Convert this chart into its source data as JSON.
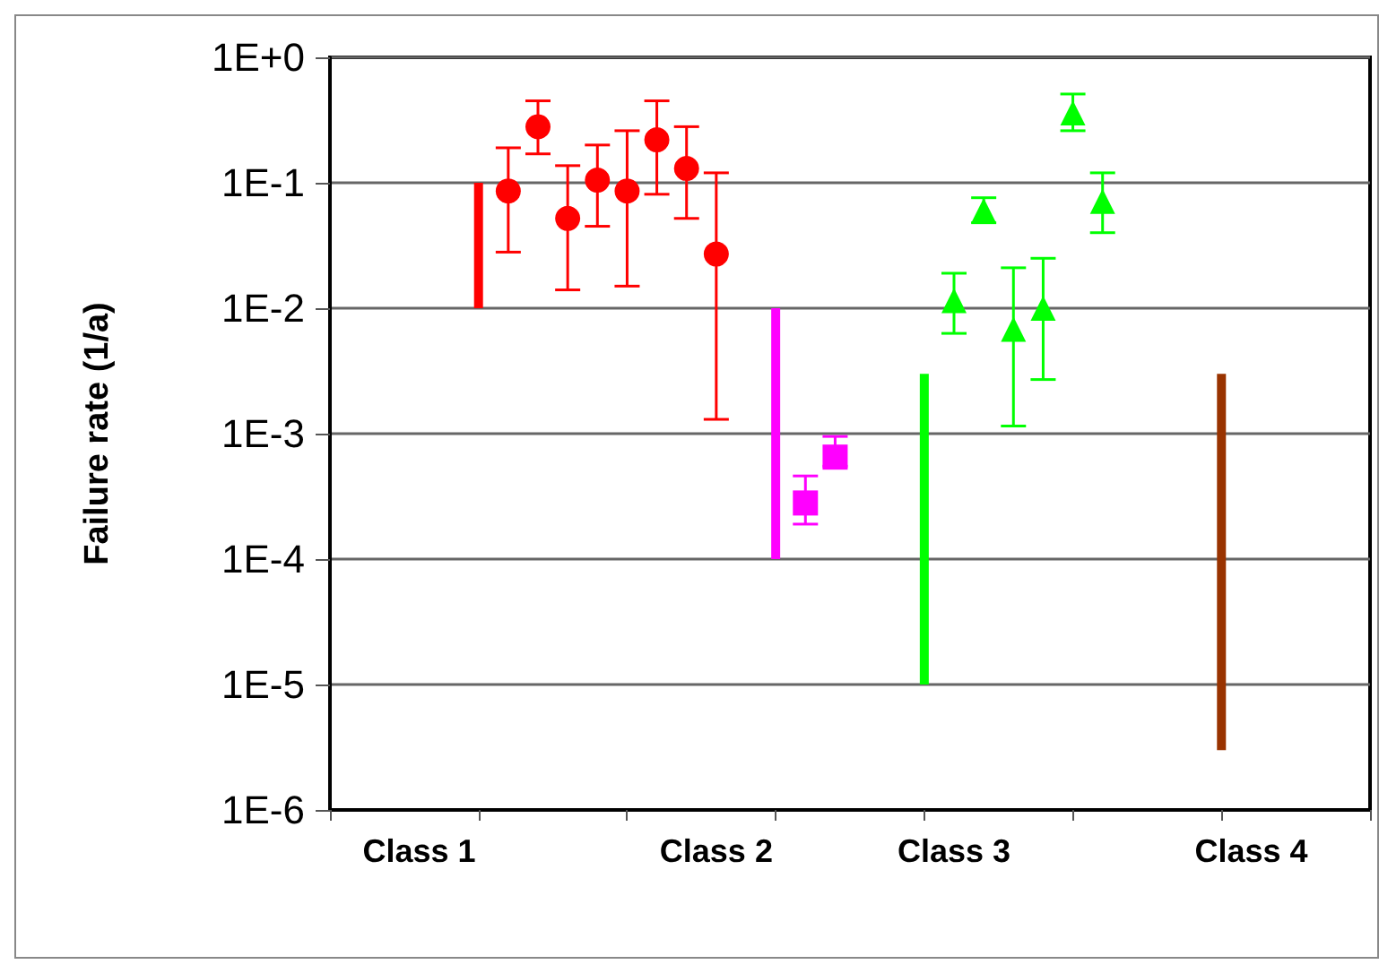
{
  "chart_data": {
    "type": "scatter",
    "ylabel": "Failure rate (1/a)",
    "log": "y",
    "grid": "y",
    "categories": [
      null,
      null,
      null,
      "Class 1",
      null,
      null,
      null,
      null,
      null,
      null,
      null,
      null,
      null,
      "Class 2",
      null,
      null,
      null,
      null,
      null,
      null,
      null,
      "Class 3",
      null,
      null,
      null,
      null,
      null,
      null,
      null,
      null,
      null,
      "Class 4",
      null,
      null,
      null,
      null
    ],
    "ylim": [
      1e-06,
      1
    ],
    "yticks": [
      {
        "value": 1,
        "label": "1E+0"
      },
      {
        "value": 0.1,
        "label": "1E-1"
      },
      {
        "value": 0.01,
        "label": "1E-2"
      },
      {
        "value": 0.001,
        "label": "1E-3"
      },
      {
        "value": 0.0001,
        "label": "1E-4"
      },
      {
        "value": 1e-05,
        "label": "1E-5"
      },
      {
        "value": 1e-06,
        "label": "1E-6"
      }
    ],
    "series": [
      {
        "type": "bar",
        "color": "#ff0000",
        "base": [
          null,
          null,
          null,
          null,
          null,
          0.01,
          null,
          null,
          null,
          null,
          null,
          null,
          null,
          null,
          null,
          null,
          null,
          null,
          null,
          null,
          null,
          null,
          null,
          null,
          null,
          null,
          null,
          null,
          null,
          null,
          null,
          null,
          null,
          null,
          null,
          null
        ],
        "values": [
          null,
          null,
          null,
          null,
          null,
          0.09,
          null,
          null,
          null,
          null,
          null,
          null,
          null,
          null,
          null,
          null,
          null,
          null,
          null,
          null,
          null,
          null,
          null,
          null,
          null,
          null,
          null,
          null,
          null,
          null,
          null,
          null,
          null,
          null,
          null,
          null
        ]
      },
      {
        "marker": "circle",
        "color": "#ff0000",
        "values": [
          null,
          null,
          null,
          null,
          null,
          null,
          0.086,
          0.28,
          0.052,
          0.105,
          0.086,
          0.22,
          0.13,
          0.027,
          null,
          null,
          null,
          null,
          null,
          null,
          null,
          null,
          null,
          null,
          null,
          null,
          null,
          null,
          null,
          null,
          null,
          null,
          null,
          null,
          null,
          null
        ],
        "errors": [
          null,
          null,
          null,
          null,
          null,
          null,
          [
            0.028,
            0.19
          ],
          [
            0.17,
            0.45
          ],
          [
            0.014,
            0.137
          ],
          [
            0.045,
            0.2
          ],
          [
            0.015,
            0.26
          ],
          [
            0.081,
            0.45
          ],
          [
            0.052,
            0.28
          ],
          [
            0.0013,
            0.12
          ],
          null,
          null,
          null,
          null,
          null,
          null,
          null,
          null,
          null,
          null,
          null,
          null,
          null,
          null,
          null,
          null,
          null,
          null,
          null,
          null,
          null,
          null
        ]
      },
      {
        "type": "bar",
        "color": "#ff00ff",
        "base": [
          null,
          null,
          null,
          null,
          null,
          null,
          null,
          null,
          null,
          null,
          null,
          null,
          null,
          null,
          null,
          0.0001,
          null,
          null,
          null,
          null,
          null,
          null,
          null,
          null,
          null,
          null,
          null,
          null,
          null,
          null,
          null,
          null,
          null,
          null,
          null,
          null
        ],
        "values": [
          null,
          null,
          null,
          null,
          null,
          null,
          null,
          null,
          null,
          null,
          null,
          null,
          null,
          null,
          null,
          0.0099,
          null,
          null,
          null,
          null,
          null,
          null,
          null,
          null,
          null,
          null,
          null,
          null,
          null,
          null,
          null,
          null,
          null,
          null,
          null,
          null
        ]
      },
      {
        "marker": "square",
        "color": "#ff00ff",
        "values": [
          null,
          null,
          null,
          null,
          null,
          null,
          null,
          null,
          null,
          null,
          null,
          null,
          null,
          null,
          null,
          null,
          0.00028,
          0.00065,
          null,
          null,
          null,
          null,
          null,
          null,
          null,
          null,
          null,
          null,
          null,
          null,
          null,
          null,
          null,
          null,
          null,
          null
        ],
        "errors": [
          null,
          null,
          null,
          null,
          null,
          null,
          null,
          null,
          null,
          null,
          null,
          null,
          null,
          null,
          null,
          null,
          [
            0.00019,
            0.00046
          ],
          [
            0.00055,
            0.00095
          ],
          null,
          null,
          null,
          null,
          null,
          null,
          null,
          null,
          null,
          null,
          null,
          null,
          null,
          null,
          null,
          null,
          null,
          null
        ]
      },
      {
        "type": "bar",
        "color": "#00ff00",
        "base": [
          null,
          null,
          null,
          null,
          null,
          null,
          null,
          null,
          null,
          null,
          null,
          null,
          null,
          null,
          null,
          null,
          null,
          null,
          null,
          null,
          1e-05,
          null,
          null,
          null,
          null,
          null,
          null,
          null,
          null,
          null,
          null,
          null,
          null,
          null,
          null,
          null
        ],
        "values": [
          null,
          null,
          null,
          null,
          null,
          null,
          null,
          null,
          null,
          null,
          null,
          null,
          null,
          null,
          null,
          null,
          null,
          null,
          null,
          null,
          0.00299,
          null,
          null,
          null,
          null,
          null,
          null,
          null,
          null,
          null,
          null,
          null,
          null,
          null,
          null,
          null
        ]
      },
      {
        "marker": "triangle",
        "color": "#00ff00",
        "values": [
          null,
          null,
          null,
          null,
          null,
          null,
          null,
          null,
          null,
          null,
          null,
          null,
          null,
          null,
          null,
          null,
          null,
          null,
          null,
          null,
          null,
          0.0115,
          0.06,
          0.0068,
          0.01,
          0.36,
          0.071,
          null,
          null,
          null,
          null,
          null,
          null,
          null,
          null,
          null
        ],
        "errors": [
          null,
          null,
          null,
          null,
          null,
          null,
          null,
          null,
          null,
          null,
          null,
          null,
          null,
          null,
          null,
          null,
          null,
          null,
          null,
          null,
          null,
          [
            0.0063,
            0.019
          ],
          [
            0.048,
            0.076
          ],
          [
            0.00115,
            0.021
          ],
          [
            0.0027,
            0.025
          ],
          [
            0.26,
            0.51
          ],
          [
            0.04,
            0.12
          ],
          null,
          null,
          null,
          null,
          null,
          null,
          null,
          null,
          null
        ]
      },
      {
        "type": "bar",
        "color": "#993300",
        "base": [
          null,
          null,
          null,
          null,
          null,
          null,
          null,
          null,
          null,
          null,
          null,
          null,
          null,
          null,
          null,
          null,
          null,
          null,
          null,
          null,
          null,
          null,
          null,
          null,
          null,
          null,
          null,
          null,
          null,
          null,
          3e-06,
          null,
          null,
          null,
          null,
          null
        ],
        "values": [
          null,
          null,
          null,
          null,
          null,
          null,
          null,
          null,
          null,
          null,
          null,
          null,
          null,
          null,
          null,
          null,
          null,
          null,
          null,
          null,
          null,
          null,
          null,
          null,
          null,
          null,
          null,
          null,
          null,
          null,
          0.002997,
          null,
          null,
          null,
          null,
          null
        ]
      }
    ]
  }
}
